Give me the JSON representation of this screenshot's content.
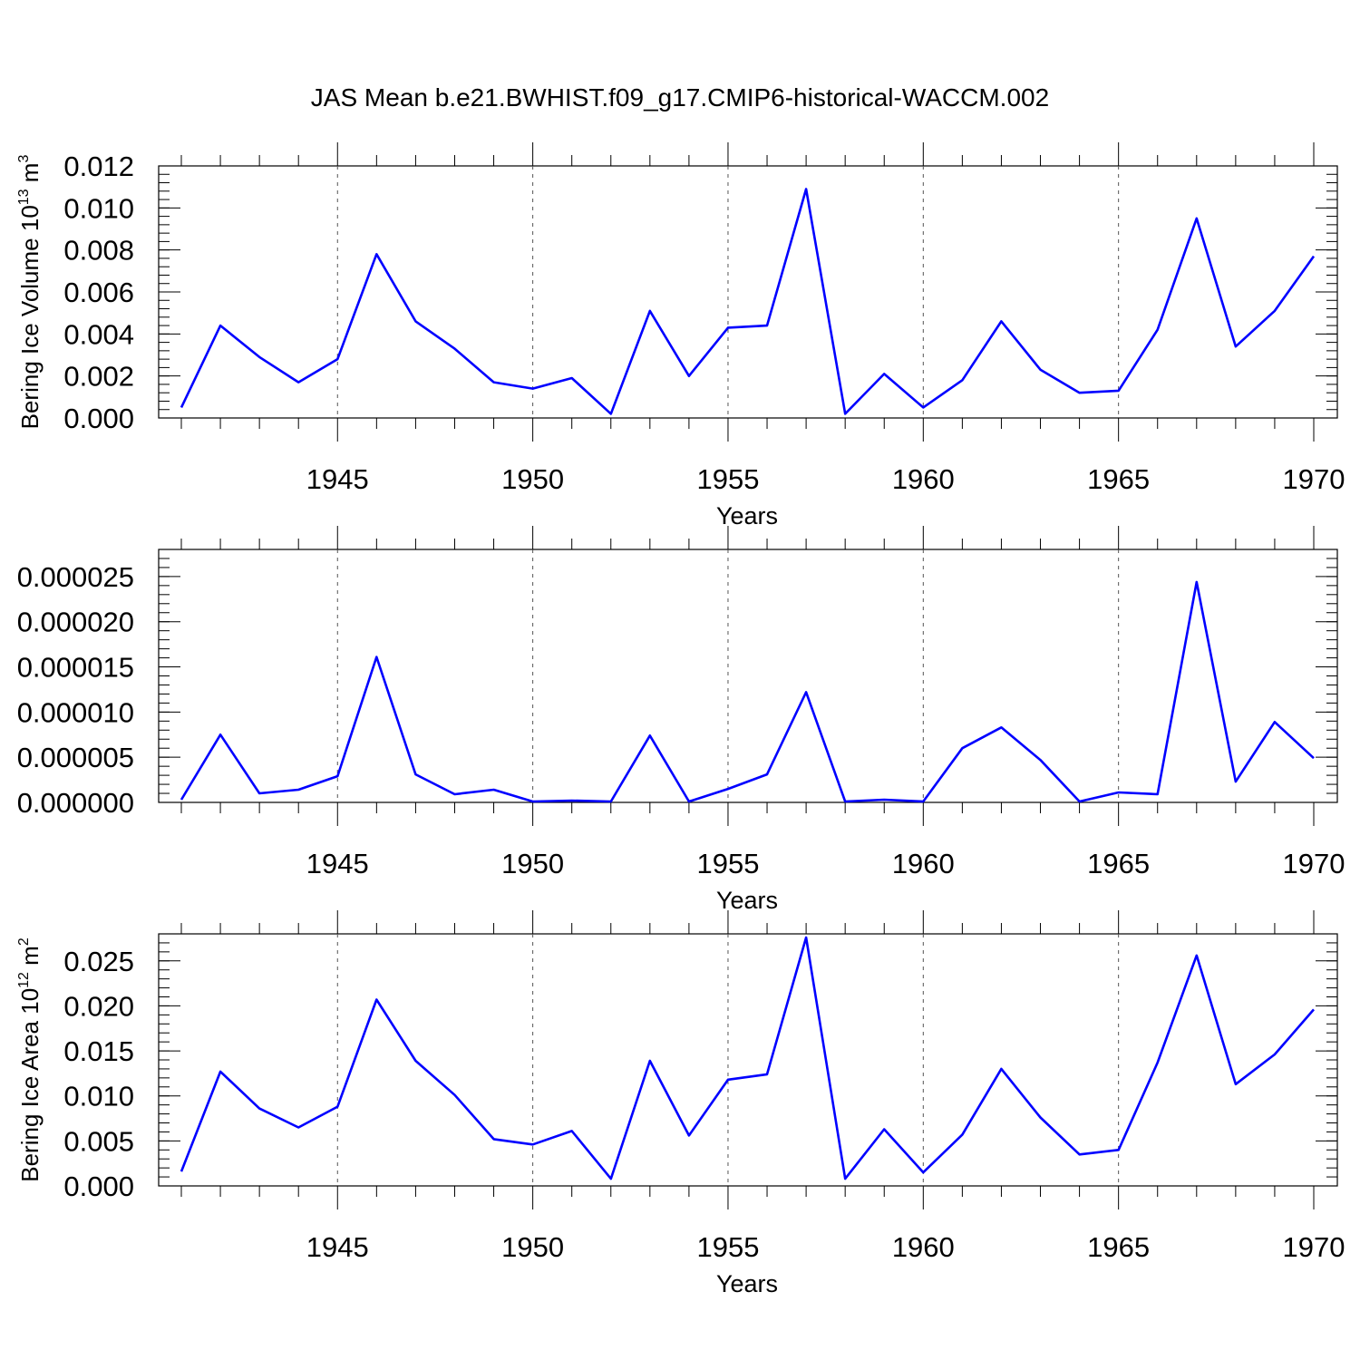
{
  "figure": {
    "title": "JAS Mean b.e21.BWHIST.f09_g17.CMIP6-historical-WACCM.002"
  },
  "chart_data": [
    {
      "type": "line",
      "xlabel": "Years",
      "ylabel_main": "Bering Ice Volume 10",
      "ylabel_exp": "13",
      "ylabel_unit": " m",
      "ylabel_unit_exp": "3",
      "xlim": [
        1941,
        1970
      ],
      "ylim": [
        0,
        0.012
      ],
      "x_ticks": [
        1945,
        1950,
        1955,
        1960,
        1965,
        1970
      ],
      "y_ticks": [
        "0.000",
        "0.002",
        "0.004",
        "0.006",
        "0.008",
        "0.010",
        "0.012"
      ],
      "y_tick_values": [
        0,
        0.002,
        0.004,
        0.006,
        0.008,
        0.01,
        0.012
      ],
      "y_minor_step": 0.0004,
      "grid": "vertical dashed at major x ticks",
      "x": [
        1941,
        1942,
        1943,
        1944,
        1945,
        1946,
        1947,
        1948,
        1949,
        1950,
        1951,
        1952,
        1953,
        1954,
        1955,
        1956,
        1957,
        1958,
        1959,
        1960,
        1961,
        1962,
        1963,
        1964,
        1965,
        1966,
        1967,
        1968,
        1969,
        1970
      ],
      "series": [
        {
          "values": [
            0.0005,
            0.0044,
            0.0029,
            0.0017,
            0.0028,
            0.0078,
            0.0046,
            0.0033,
            0.0017,
            0.0014,
            0.0019,
            0.0002,
            0.0051,
            0.002,
            0.0043,
            0.0044,
            0.0109,
            0.0002,
            0.0021,
            0.0005,
            0.0018,
            0.0046,
            0.0023,
            0.0012,
            0.0013,
            0.0042,
            0.0095,
            0.0034,
            0.0051,
            0.0077
          ]
        }
      ]
    },
    {
      "type": "line",
      "xlabel": "Years",
      "ylabel_main": "",
      "ylabel_exp": "",
      "ylabel_unit": "",
      "ylabel_unit_exp": "",
      "xlim": [
        1941,
        1970
      ],
      "ylim": [
        0,
        2.8e-05
      ],
      "x_ticks": [
        1945,
        1950,
        1955,
        1960,
        1965,
        1970
      ],
      "y_ticks": [
        "0.000000",
        "0.000005",
        "0.000010",
        "0.000015",
        "0.000020",
        "0.000025"
      ],
      "y_tick_values": [
        0,
        5e-06,
        1e-05,
        1.5e-05,
        2e-05,
        2.5e-05
      ],
      "y_minor_step": 1e-06,
      "grid": "vertical dashed at major x ticks",
      "x": [
        1941,
        1942,
        1943,
        1944,
        1945,
        1946,
        1947,
        1948,
        1949,
        1950,
        1951,
        1952,
        1953,
        1954,
        1955,
        1956,
        1957,
        1958,
        1959,
        1960,
        1961,
        1962,
        1963,
        1964,
        1965,
        1966,
        1967,
        1968,
        1969,
        1970
      ],
      "series": [
        {
          "values": [
            3e-07,
            7.5e-06,
            1e-06,
            1.4e-06,
            2.9e-06,
            1.61e-05,
            3.1e-06,
            9e-07,
            1.4e-06,
            1e-07,
            2e-07,
            1e-07,
            7.4e-06,
            1e-07,
            1.5e-06,
            3.1e-06,
            1.22e-05,
            1e-07,
            3e-07,
            1e-07,
            6e-06,
            8.3e-06,
            4.7e-06,
            1e-07,
            1.1e-06,
            9e-07,
            2.44e-05,
            2.3e-06,
            8.9e-06,
            4.9e-06
          ]
        }
      ]
    },
    {
      "type": "line",
      "xlabel": "Years",
      "ylabel_main": "Bering Ice Area 10",
      "ylabel_exp": "12",
      "ylabel_unit": " m",
      "ylabel_unit_exp": "2",
      "xlim": [
        1941,
        1970
      ],
      "ylim": [
        0,
        0.028
      ],
      "x_ticks": [
        1945,
        1950,
        1955,
        1960,
        1965,
        1970
      ],
      "y_ticks": [
        "0.000",
        "0.005",
        "0.010",
        "0.015",
        "0.020",
        "0.025"
      ],
      "y_tick_values": [
        0,
        0.005,
        0.01,
        0.015,
        0.02,
        0.025
      ],
      "y_minor_step": 0.001,
      "grid": "vertical dashed at major x ticks",
      "x": [
        1941,
        1942,
        1943,
        1944,
        1945,
        1946,
        1947,
        1948,
        1949,
        1950,
        1951,
        1952,
        1953,
        1954,
        1955,
        1956,
        1957,
        1958,
        1959,
        1960,
        1961,
        1962,
        1963,
        1964,
        1965,
        1966,
        1967,
        1968,
        1969,
        1970
      ],
      "series": [
        {
          "values": [
            0.0016,
            0.0127,
            0.0086,
            0.0065,
            0.0088,
            0.0207,
            0.0139,
            0.0101,
            0.0052,
            0.0046,
            0.0061,
            0.0008,
            0.0139,
            0.0056,
            0.0118,
            0.0124,
            0.0276,
            0.0008,
            0.0063,
            0.0015,
            0.0057,
            0.013,
            0.0076,
            0.0035,
            0.004,
            0.0137,
            0.0256,
            0.0113,
            0.0146,
            0.0196
          ]
        }
      ]
    }
  ]
}
